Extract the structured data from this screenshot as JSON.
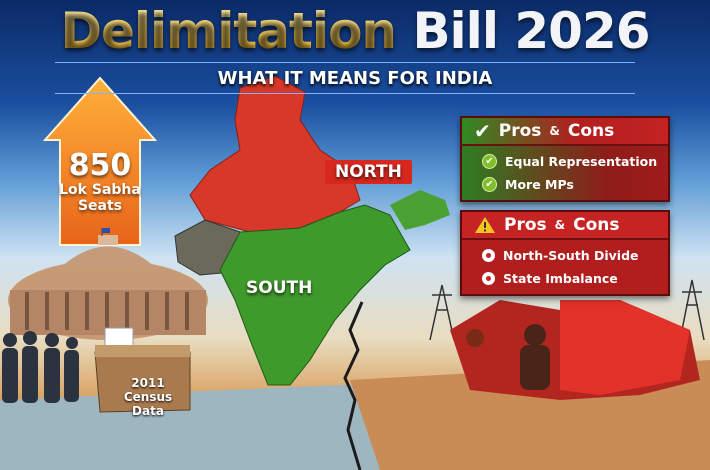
{
  "header": {
    "title_part1": "Delimitation",
    "title_part2": "Bill 2026",
    "subtitle": "WHAT IT MEANS FOR INDIA"
  },
  "map": {
    "north_label": "NORTH",
    "south_label": "SOUTH",
    "north_color": "#d8382a",
    "south_color": "#3f9a2c"
  },
  "seats": {
    "number": "850",
    "line1": "Lok Sabha",
    "line2": "Seats"
  },
  "census": {
    "year": "2011",
    "label": "Census Data"
  },
  "pros_panel": {
    "icon": "check-icon",
    "title_main": "Pros",
    "title_amp": "&",
    "title_end": "Cons",
    "items": [
      {
        "icon": "check-circle-icon",
        "text": "Equal Representation"
      },
      {
        "icon": "check-circle-icon",
        "text": "More MPs"
      }
    ]
  },
  "cons_panel": {
    "icon": "warning-icon",
    "title_main": "Pros",
    "title_amp": "&",
    "title_end": "Cons",
    "items": [
      {
        "icon": "bullet-icon",
        "text": "North-South Divide"
      },
      {
        "icon": "bullet-icon",
        "text": "State Imbalance"
      }
    ]
  }
}
